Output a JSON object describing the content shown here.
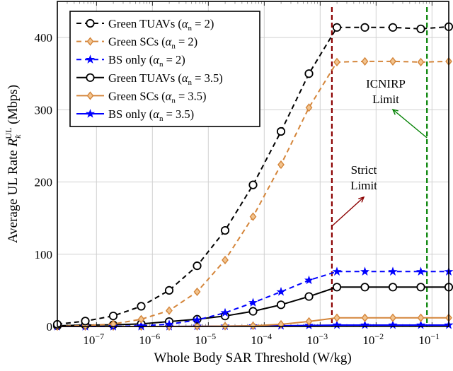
{
  "chart_data": {
    "type": "line",
    "title": "",
    "xlabel": "Whole Body SAR Threshold (W/kg)",
    "ylabel": {
      "prefix": "Average UL Rate ",
      "symbol": "R",
      "sub": "k",
      "sup": "UL",
      "suffix": " (Mbps)"
    },
    "xscale": "log",
    "xlim_log10": [
      -7.7,
      -0.7
    ],
    "ylim": [
      0,
      450
    ],
    "grid": true,
    "legend_position": "top-left",
    "x_log10": [
      -7.7,
      -7.2,
      -6.7,
      -6.2,
      -5.7,
      -5.2,
      -4.7,
      -4.2,
      -3.7,
      -3.2,
      -2.7,
      -2.2,
      -1.7,
      -1.2,
      -0.7
    ],
    "x_ticks": [
      {
        "log10": -7,
        "base": "10",
        "exp": "−7"
      },
      {
        "log10": -6,
        "base": "10",
        "exp": "−6"
      },
      {
        "log10": -5,
        "base": "10",
        "exp": "−5"
      },
      {
        "log10": -4,
        "base": "10",
        "exp": "−4"
      },
      {
        "log10": -3,
        "base": "10",
        "exp": "−3"
      },
      {
        "log10": -2,
        "base": "10",
        "exp": "−2"
      },
      {
        "log10": -1,
        "base": "10",
        "exp": "−1"
      }
    ],
    "y_ticks": [
      {
        "value": 0,
        "label": "0"
      },
      {
        "value": 100,
        "label": "100"
      },
      {
        "value": 200,
        "label": "200"
      },
      {
        "value": 300,
        "label": "300"
      },
      {
        "value": 400,
        "label": "400"
      }
    ],
    "alpha_symbol": "α",
    "alpha_sub": "n",
    "series": [
      {
        "name": "Green TUAVs",
        "alpha": "2",
        "color": "#000000",
        "dash": true,
        "marker": "circle",
        "values": [
          3,
          7.5,
          14.6,
          28,
          50,
          84,
          133,
          196,
          270,
          350,
          414,
          414,
          414,
          412,
          415
        ]
      },
      {
        "name": "Green SCs",
        "alpha": "2",
        "color": "#D4853A",
        "dash": true,
        "marker": "diamond",
        "values": [
          0.2,
          1.2,
          3.4,
          10,
          22,
          48,
          92,
          152,
          224,
          303,
          366,
          367,
          367,
          366,
          367
        ]
      },
      {
        "name": "BS only",
        "alpha": "2",
        "color": "#0000FF",
        "dash": true,
        "marker": "star",
        "values": [
          0,
          0,
          0,
          1,
          3,
          9,
          19,
          33,
          48,
          64,
          76,
          76,
          76,
          76,
          76
        ]
      },
      {
        "name": "Green TUAVs",
        "alpha": "3.5",
        "color": "#000000",
        "dash": false,
        "marker": "circle",
        "values": [
          1,
          1.9,
          2.3,
          3.6,
          6.8,
          10,
          14.5,
          21,
          30,
          41.5,
          54.5,
          54.5,
          54.5,
          54.5,
          54.5
        ]
      },
      {
        "name": "Green SCs",
        "alpha": "3.5",
        "color": "#D4853A",
        "dash": false,
        "marker": "diamond",
        "values": [
          0,
          0,
          0,
          0,
          0,
          0.2,
          0.5,
          1,
          3,
          7,
          12,
          12,
          12,
          12,
          12
        ]
      },
      {
        "name": "BS only",
        "alpha": "3.5",
        "color": "#0000FF",
        "dash": false,
        "marker": "star",
        "values": [
          0,
          0,
          0,
          0,
          0,
          0.3,
          0.5,
          0.8,
          1,
          1.5,
          2,
          2,
          2,
          2,
          2
        ]
      }
    ],
    "vlines": [
      {
        "name": "strict-limit",
        "log10": -2.79,
        "color": "#8B0000",
        "label_lines": [
          "Strict",
          "Limit"
        ]
      },
      {
        "name": "icnirp-limit",
        "log10": -1.09,
        "color": "#008000",
        "label_lines": [
          "ICNIRP",
          "Limit"
        ]
      }
    ]
  }
}
